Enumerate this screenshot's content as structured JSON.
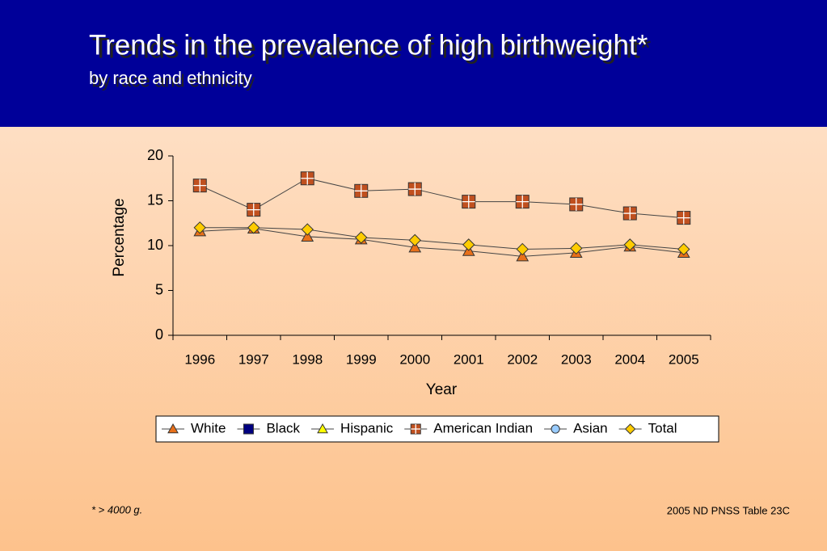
{
  "title": "Trends in the prevalence of high birthweight*",
  "subtitle": "by race and ethnicity",
  "footnote": "*  > 4000 g.",
  "source": "2005 ND PNSS Table 23C",
  "chart_data": {
    "type": "line",
    "categories": [
      "1996",
      "1997",
      "1998",
      "1999",
      "2000",
      "2001",
      "2002",
      "2003",
      "2004",
      "2005"
    ],
    "ylabel": "Percentage",
    "xlabel": "Year",
    "ylim": [
      0,
      20
    ],
    "yticks": [
      0,
      5,
      10,
      15,
      20
    ],
    "series": [
      {
        "name": "White",
        "color": "#e8701a",
        "marker": "triangle",
        "values": [
          11.6,
          11.9,
          11.0,
          10.7,
          9.8,
          9.4,
          8.8,
          9.2,
          9.9,
          9.2
        ]
      },
      {
        "name": "Black",
        "color": "#000080",
        "marker": "square",
        "values": [
          null,
          null,
          null,
          null,
          null,
          null,
          null,
          null,
          null,
          null
        ]
      },
      {
        "name": "Hispanic",
        "color": "#ffff00",
        "marker": "triangle",
        "values": [
          null,
          null,
          null,
          null,
          null,
          null,
          null,
          null,
          null,
          null
        ]
      },
      {
        "name": "American Indian",
        "color": "#c0501f",
        "marker": "crosssquare",
        "values": [
          16.7,
          14.0,
          17.5,
          16.1,
          16.3,
          14.9,
          14.9,
          14.6,
          13.6,
          13.1
        ]
      },
      {
        "name": "Asian",
        "color": "#99ccff",
        "marker": "circle",
        "values": [
          null,
          null,
          null,
          null,
          null,
          null,
          null,
          null,
          null,
          null
        ]
      },
      {
        "name": "Total",
        "color": "#ffcc00",
        "marker": "diamond",
        "values": [
          12.0,
          12.0,
          11.8,
          10.9,
          10.6,
          10.1,
          9.6,
          9.7,
          10.1,
          9.6
        ]
      }
    ]
  }
}
